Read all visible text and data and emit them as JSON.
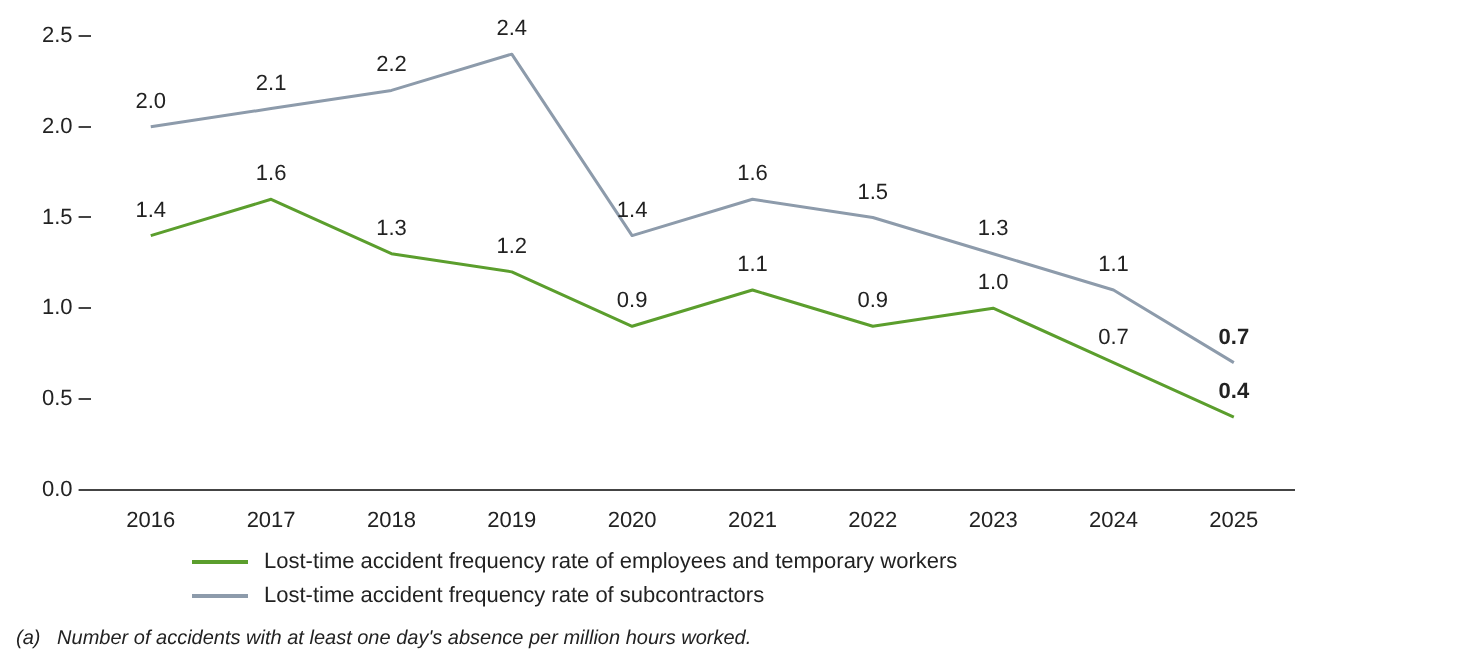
{
  "chart_data": {
    "type": "line",
    "categories": [
      "2016",
      "2017",
      "2018",
      "2019",
      "2020",
      "2021",
      "2022",
      "2023",
      "2024",
      "2025"
    ],
    "series": [
      {
        "name": "Lost-time accident frequency rate of employees and temporary workers",
        "color": "#5b9e2d",
        "values": [
          1.4,
          1.6,
          1.3,
          1.2,
          0.9,
          1.1,
          0.9,
          1.0,
          0.7,
          0.4
        ],
        "value_labels": [
          "1.4",
          "1.6",
          "1.3",
          "1.2",
          "0.9",
          "1.1",
          "0.9",
          "1.0",
          "0.7",
          "0.4"
        ]
      },
      {
        "name": "Lost-time accident frequency rate of subcontractors",
        "color": "#8d9bab",
        "values": [
          2.0,
          2.1,
          2.2,
          2.4,
          1.4,
          1.6,
          1.5,
          1.3,
          1.1,
          0.7
        ],
        "value_labels": [
          "2.0",
          "2.1",
          "2.2",
          "2.4",
          "1.4",
          "1.6",
          "1.5",
          "1.3",
          "1.1",
          "0.7"
        ]
      }
    ],
    "ylim": [
      0,
      2.5
    ],
    "yticks": [
      {
        "value": 0,
        "label": "0.0"
      },
      0.5,
      {
        "value": 1,
        "label": "1.0"
      },
      1.5,
      {
        "value": 2,
        "label": "2.0"
      },
      2.5
    ],
    "grid": false,
    "legend": "bottom left",
    "marker": "none",
    "line_style": "solid",
    "annotations": [
      "(a)   Number of accidents with at least one day's absence per million hours worked."
    ]
  }
}
